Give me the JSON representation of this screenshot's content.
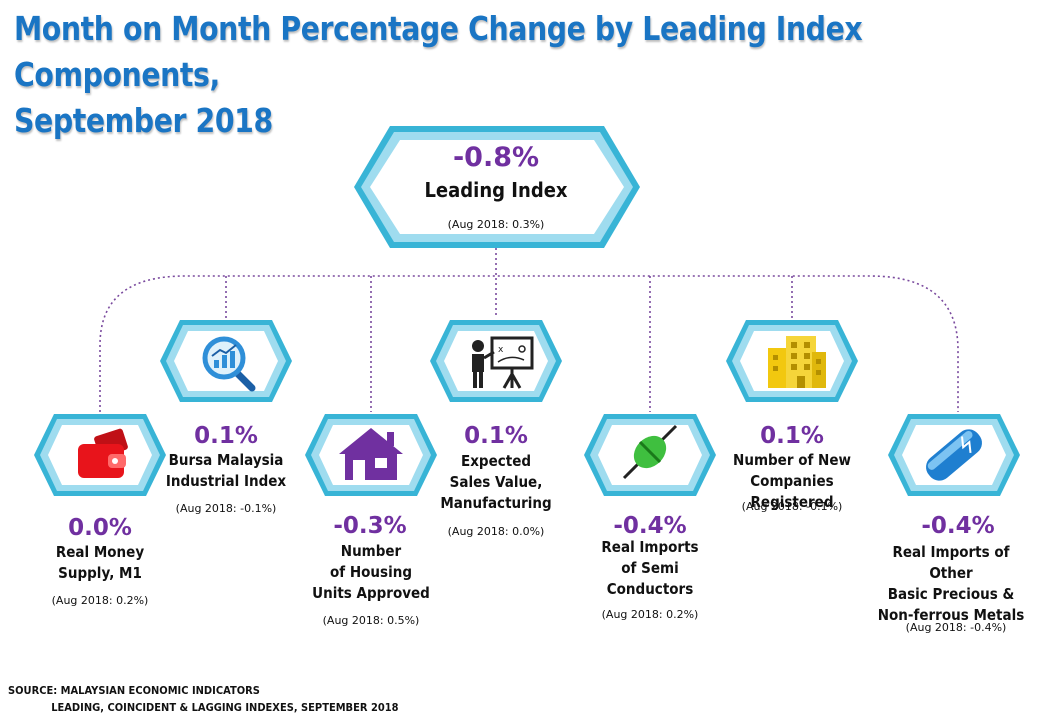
{
  "title": {
    "line1": "Month on Month Percentage Change by Leading Index Components,",
    "line2": "September 2018"
  },
  "top": {
    "value": "-0.8%",
    "label": "Leading  Index",
    "prev": "(Aug 2018: 0.3%)"
  },
  "components": [
    {
      "value": "0.0%",
      "label": [
        "Real Money",
        "Supply, M1"
      ],
      "prev": "(Aug 2018: 0.2%)",
      "icon": "wallet-icon",
      "color": "#e8141b"
    },
    {
      "value": "0.1%",
      "label": [
        "Bursa Malaysia",
        "Industrial Index"
      ],
      "prev": "(Aug 2018: -0.1%)",
      "icon": "magnifier-chart-icon",
      "color": "#2f8fd8"
    },
    {
      "value": "-0.3%",
      "label": [
        "Number",
        "of Housing",
        "Units Approved"
      ],
      "prev": "(Aug 2018: 0.5%)",
      "icon": "house-icon",
      "color": "#7030a0"
    },
    {
      "value": "0.1%",
      "label": [
        "Expected",
        "Sales Value,",
        "Manufacturing"
      ],
      "prev": "(Aug 2018: 0.0%)",
      "icon": "presentation-board-icon",
      "color": "#222222"
    },
    {
      "value": "-0.4%",
      "label": [
        "Real Imports",
        "of Semi",
        "Conductors"
      ],
      "prev": "(Aug 2018: 0.2%)",
      "icon": "semiconductor-icon",
      "color": "#3fbf3f"
    },
    {
      "value": "0.1%",
      "label": [
        "Number of New",
        "Companies Registered"
      ],
      "prev": "(Aug 2018: -0.1%)",
      "icon": "office-building-icon",
      "color": "#f2c80f"
    },
    {
      "value": "-0.4%",
      "label": [
        "Real Imports of Other",
        "Basic Precious &",
        "Non-ferrous Metals"
      ],
      "prev": "(Aug 2018: -0.4%)",
      "icon": "metal-bar-icon",
      "color": "#1f7fd0"
    }
  ],
  "source": {
    "line1": "SOURCE: MALAYSIAN ECONOMIC INDICATORS",
    "line2": "LEADING, COINCIDENT & LAGGING INDEXES, SEPTEMBER 2018"
  },
  "colors": {
    "title": "#1a75c4",
    "value": "#7030a0",
    "hexFrame": "#38b4d6",
    "connector": "#7a4a9e"
  }
}
